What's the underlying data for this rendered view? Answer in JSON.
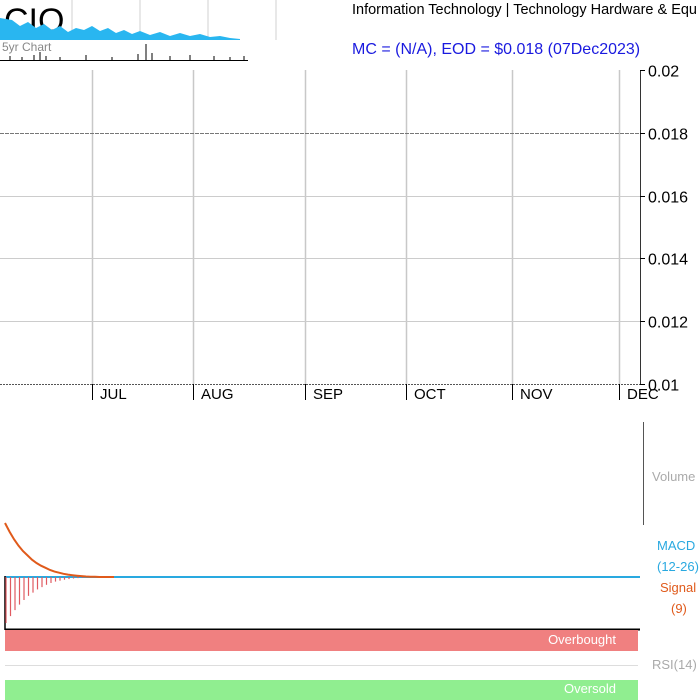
{
  "header": {
    "ticker": "CIO",
    "mini_chart_label": "5yr Chart",
    "sector": "Information Technology | Technology Hardware & Equ",
    "mc_eod": "MC = (N/A), EOD = $0.018 (07Dec2023)"
  },
  "colors": {
    "macd": "#29a9e0",
    "signal": "#e05a1b",
    "histogram": "#e05a60",
    "overbought": "#f08080",
    "oversold": "#90ee90",
    "mc_text": "#1a1adf",
    "grid": "#c8c8c8"
  },
  "chart_data": [
    {
      "type": "line",
      "x_tick_labels": [
        "JUL",
        "AUG",
        "SEP",
        "OCT",
        "NOV",
        "DEC"
      ],
      "y_tick_labels": [
        "0.02",
        "0.018",
        "0.016",
        "0.014",
        "0.012",
        "0.01"
      ],
      "ylim": [
        0.01,
        0.02
      ],
      "reference_line": 0.018,
      "grid": true,
      "series": [
        {
          "values": []
        }
      ]
    },
    {
      "type": "bar",
      "label": "Volume",
      "values": []
    },
    {
      "type": "line",
      "labels": {
        "macd": "MACD",
        "macd_params": "(12-26)",
        "signal": "Signal",
        "signal_params": "(9)"
      },
      "signal_decay": [
        1.0,
        0.84,
        0.7,
        0.58,
        0.48,
        0.4,
        0.32,
        0.26,
        0.21,
        0.17,
        0.13,
        0.1,
        0.08,
        0.06,
        0.045,
        0.033,
        0.024,
        0.016,
        0.01,
        0.006,
        0.003,
        0.0
      ],
      "histogram": [
        -1.0,
        -0.85,
        -0.72,
        -0.6,
        -0.5,
        -0.41,
        -0.34,
        -0.27,
        -0.22,
        -0.17,
        -0.13,
        -0.1,
        -0.08,
        -0.06,
        -0.045,
        -0.033,
        -0.024,
        -0.016,
        -0.01,
        -0.006,
        -0.003,
        0.0
      ]
    },
    {
      "type": "area",
      "labels": {
        "rsi": "RSI(14)",
        "overbought": "Overbought",
        "oversold": "Oversold"
      }
    }
  ]
}
